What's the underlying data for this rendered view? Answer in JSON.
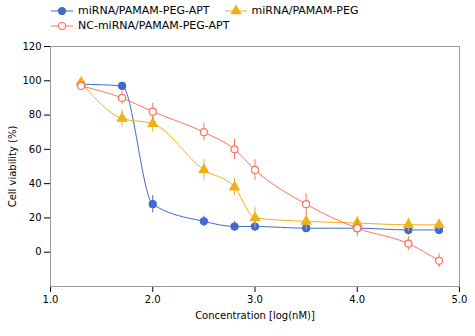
{
  "chart_data": {
    "type": "line",
    "xlabel": "Concentration [log(nM)]",
    "ylabel": "Cell viability (%)",
    "xlim": [
      1,
      5
    ],
    "ylim": [
      -20,
      120
    ],
    "xticks": [
      1,
      2,
      3,
      4,
      5
    ],
    "yticks": [
      0,
      20,
      40,
      60,
      80,
      100,
      120
    ],
    "x": [
      1.3,
      1.7,
      2.0,
      2.5,
      2.8,
      3.0,
      3.5,
      4.0,
      4.5,
      4.8
    ],
    "series": [
      {
        "name": "miRNA/PAMAM-PEG-APT",
        "marker": "circle",
        "values": [
          98,
          97,
          28,
          18,
          15,
          15,
          14,
          14,
          13,
          13
        ],
        "yerr": [
          2,
          2,
          5,
          3,
          3,
          3,
          2,
          3,
          3,
          2
        ]
      },
      {
        "name": "miRNA/PAMAM-PEG",
        "marker": "triangle",
        "values": [
          99,
          78,
          75,
          48,
          38,
          20,
          18,
          17,
          16,
          16
        ],
        "yerr": [
          2,
          5,
          5,
          6,
          5,
          6,
          5,
          4,
          4,
          3
        ]
      },
      {
        "name": "NC-miRNA/PAMAM-PEG-APT",
        "marker": "open-circle",
        "values": [
          97,
          90,
          82,
          70,
          60,
          48,
          28,
          14,
          5,
          -5
        ],
        "yerr": [
          2,
          4,
          5,
          5,
          6,
          6,
          6,
          5,
          4,
          4
        ]
      }
    ]
  }
}
